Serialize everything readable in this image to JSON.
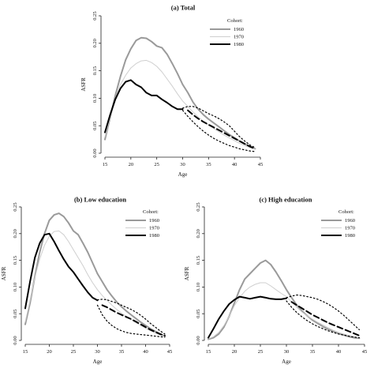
{
  "chart_data": [
    {
      "type": "line",
      "title": "(a) Total",
      "xlabel": "Age",
      "ylabel": "ASFR",
      "xlim": [
        15,
        45
      ],
      "ylim": [
        0,
        0.25
      ],
      "xticks": [
        15,
        20,
        25,
        30,
        35,
        40,
        45
      ],
      "yticks": [
        0.0,
        0.05,
        0.1,
        0.15,
        0.2,
        0.25
      ],
      "legend_title": "Cohort:",
      "legend_position": "top-right",
      "series": [
        {
          "name": "1960",
          "color": "#9a9a9a",
          "width": 2,
          "style": "solid",
          "x": [
            15,
            16,
            17,
            18,
            19,
            20,
            21,
            22,
            23,
            24,
            25,
            26,
            27,
            28,
            29,
            30,
            31,
            32,
            33,
            34,
            35,
            36,
            37,
            38,
            39,
            40,
            41,
            42,
            43,
            44
          ],
          "y": [
            0.025,
            0.065,
            0.105,
            0.14,
            0.17,
            0.19,
            0.205,
            0.21,
            0.209,
            0.203,
            0.195,
            0.192,
            0.18,
            0.163,
            0.145,
            0.125,
            0.11,
            0.093,
            0.08,
            0.07,
            0.062,
            0.055,
            0.048,
            0.041,
            0.034,
            0.028,
            0.022,
            0.017,
            0.012,
            0.008
          ]
        },
        {
          "name": "1970",
          "color": "#cfcfcf",
          "width": 1,
          "style": "solid",
          "x": [
            15,
            16,
            17,
            18,
            19,
            20,
            21,
            22,
            23,
            24,
            25,
            26,
            27,
            28,
            29,
            30,
            31,
            32,
            33,
            34,
            35,
            36,
            37,
            38,
            39,
            40,
            41,
            42,
            43,
            44
          ],
          "y": [
            0.03,
            0.065,
            0.1,
            0.125,
            0.142,
            0.155,
            0.163,
            0.168,
            0.169,
            0.165,
            0.158,
            0.148,
            0.135,
            0.122,
            0.108,
            0.095,
            0.085,
            0.075,
            0.066,
            0.058,
            0.051,
            0.045,
            0.039,
            0.033,
            0.028,
            0.023,
            0.018,
            0.014,
            0.01,
            0.007
          ]
        },
        {
          "name": "1980",
          "color": "#000000",
          "width": 2,
          "style": "solid",
          "x": [
            15,
            16,
            17,
            18,
            19,
            20,
            21,
            22,
            23,
            24,
            25,
            26,
            27,
            28,
            29,
            30
          ],
          "y": [
            0.038,
            0.07,
            0.098,
            0.118,
            0.13,
            0.133,
            0.125,
            0.12,
            0.11,
            0.105,
            0.105,
            0.098,
            0.092,
            0.085,
            0.08,
            0.08
          ]
        },
        {
          "name": "",
          "color": "#000000",
          "width": 2,
          "style": "dashed",
          "x": [
            31,
            32,
            33,
            34,
            35,
            36,
            37,
            38,
            39,
            40,
            41,
            42,
            43,
            44
          ],
          "y": [
            0.078,
            0.07,
            0.063,
            0.057,
            0.052,
            0.047,
            0.042,
            0.037,
            0.032,
            0.027,
            0.022,
            0.017,
            0.012,
            0.008
          ]
        },
        {
          "name": "",
          "color": "#000000",
          "width": 1.2,
          "style": "dotted",
          "x": [
            30,
            31,
            32,
            33,
            34,
            35,
            36,
            37,
            38,
            39,
            40,
            41,
            42,
            43,
            44
          ],
          "y": [
            0.082,
            0.085,
            0.085,
            0.082,
            0.077,
            0.072,
            0.068,
            0.063,
            0.057,
            0.05,
            0.04,
            0.03,
            0.022,
            0.015,
            0.01
          ]
        },
        {
          "name": "",
          "color": "#000000",
          "width": 1.2,
          "style": "dotted",
          "x": [
            30,
            31,
            32,
            33,
            34,
            35,
            36,
            37,
            38,
            39,
            40,
            41,
            42,
            43,
            44
          ],
          "y": [
            0.078,
            0.067,
            0.057,
            0.048,
            0.04,
            0.033,
            0.027,
            0.022,
            0.018,
            0.014,
            0.011,
            0.008,
            0.006,
            0.004,
            0.003
          ]
        }
      ]
    },
    {
      "type": "line",
      "title": "(b) Low education",
      "xlabel": "Age",
      "ylabel": "ASFR",
      "xlim": [
        15,
        45
      ],
      "ylim": [
        0,
        0.25
      ],
      "xticks": [
        15,
        20,
        25,
        30,
        35,
        40,
        45
      ],
      "yticks": [
        0.0,
        0.05,
        0.1,
        0.15,
        0.2,
        0.25
      ],
      "legend_title": "Cohort:",
      "legend_position": "top-right",
      "series": [
        {
          "name": "1960",
          "color": "#9a9a9a",
          "width": 2,
          "style": "solid",
          "x": [
            15,
            16,
            17,
            18,
            19,
            20,
            21,
            22,
            23,
            24,
            25,
            26,
            27,
            28,
            29,
            30,
            31,
            32,
            33,
            34,
            35,
            36,
            37,
            38,
            39,
            40,
            41,
            42,
            43,
            44
          ],
          "y": [
            0.03,
            0.07,
            0.12,
            0.165,
            0.2,
            0.225,
            0.235,
            0.238,
            0.232,
            0.22,
            0.205,
            0.198,
            0.182,
            0.165,
            0.145,
            0.125,
            0.11,
            0.095,
            0.083,
            0.072,
            0.063,
            0.055,
            0.048,
            0.041,
            0.034,
            0.028,
            0.022,
            0.017,
            0.012,
            0.008
          ]
        },
        {
          "name": "1970",
          "color": "#cfcfcf",
          "width": 1,
          "style": "solid",
          "x": [
            15,
            16,
            17,
            18,
            19,
            20,
            21,
            22,
            23,
            24,
            25,
            26,
            27,
            28,
            29,
            30,
            31,
            32,
            33,
            34,
            35,
            36,
            37,
            38,
            39,
            40,
            41,
            42,
            43,
            44
          ],
          "y": [
            0.035,
            0.075,
            0.118,
            0.152,
            0.178,
            0.195,
            0.204,
            0.205,
            0.198,
            0.185,
            0.17,
            0.155,
            0.14,
            0.123,
            0.108,
            0.095,
            0.084,
            0.075,
            0.066,
            0.058,
            0.051,
            0.045,
            0.039,
            0.033,
            0.028,
            0.023,
            0.018,
            0.014,
            0.01,
            0.007
          ]
        },
        {
          "name": "1980",
          "color": "#000000",
          "width": 2,
          "style": "solid",
          "x": [
            15,
            16,
            17,
            18,
            19,
            20,
            21,
            22,
            23,
            24,
            25,
            26,
            27,
            28,
            29,
            30
          ],
          "y": [
            0.06,
            0.11,
            0.155,
            0.182,
            0.198,
            0.2,
            0.185,
            0.168,
            0.152,
            0.138,
            0.128,
            0.115,
            0.102,
            0.09,
            0.08,
            0.075
          ]
        },
        {
          "name": "",
          "color": "#000000",
          "width": 2,
          "style": "dashed",
          "x": [
            31,
            32,
            33,
            34,
            35,
            36,
            37,
            38,
            39,
            40,
            41,
            42,
            43,
            44
          ],
          "y": [
            0.066,
            0.062,
            0.057,
            0.052,
            0.048,
            0.044,
            0.04,
            0.035,
            0.03,
            0.025,
            0.02,
            0.016,
            0.012,
            0.009
          ]
        },
        {
          "name": "",
          "color": "#000000",
          "width": 1.2,
          "style": "dotted",
          "x": [
            30,
            31,
            32,
            33,
            34,
            35,
            36,
            37,
            38,
            39,
            40,
            41,
            42,
            43,
            44
          ],
          "y": [
            0.076,
            0.077,
            0.076,
            0.073,
            0.07,
            0.066,
            0.062,
            0.058,
            0.053,
            0.047,
            0.04,
            0.032,
            0.025,
            0.018,
            0.012
          ]
        },
        {
          "name": "",
          "color": "#000000",
          "width": 1.2,
          "style": "dotted",
          "x": [
            30,
            31,
            32,
            33,
            34,
            35,
            36,
            37,
            38,
            39,
            40,
            41,
            42,
            43,
            44
          ],
          "y": [
            0.066,
            0.048,
            0.036,
            0.028,
            0.022,
            0.018,
            0.015,
            0.013,
            0.012,
            0.011,
            0.01,
            0.009,
            0.008,
            0.007,
            0.006
          ]
        }
      ]
    },
    {
      "type": "line",
      "title": "(c) High education",
      "xlabel": "Age",
      "ylabel": "ASFR",
      "xlim": [
        15,
        45
      ],
      "ylim": [
        0,
        0.25
      ],
      "xticks": [
        15,
        20,
        25,
        30,
        35,
        40,
        45
      ],
      "yticks": [
        0.0,
        0.05,
        0.1,
        0.15,
        0.2,
        0.25
      ],
      "legend_title": "Cohort:",
      "legend_position": "top-right",
      "series": [
        {
          "name": "1960",
          "color": "#9a9a9a",
          "width": 2,
          "style": "solid",
          "x": [
            15,
            16,
            17,
            18,
            19,
            20,
            21,
            22,
            23,
            24,
            25,
            26,
            27,
            28,
            29,
            30,
            31,
            32,
            33,
            34,
            35,
            36,
            37,
            38,
            39,
            40,
            41,
            42,
            43,
            44
          ],
          "y": [
            0.002,
            0.005,
            0.012,
            0.025,
            0.045,
            0.07,
            0.095,
            0.115,
            0.125,
            0.135,
            0.145,
            0.15,
            0.142,
            0.128,
            0.112,
            0.095,
            0.08,
            0.066,
            0.055,
            0.046,
            0.038,
            0.032,
            0.026,
            0.021,
            0.017,
            0.013,
            0.01,
            0.007,
            0.005,
            0.004
          ]
        },
        {
          "name": "1970",
          "color": "#cfcfcf",
          "width": 1,
          "style": "solid",
          "x": [
            15,
            16,
            17,
            18,
            19,
            20,
            21,
            22,
            23,
            24,
            25,
            26,
            27,
            28,
            29,
            30,
            31,
            32,
            33,
            34,
            35,
            36,
            37,
            38,
            39,
            40,
            41,
            42,
            43,
            44
          ],
          "y": [
            0.003,
            0.007,
            0.015,
            0.028,
            0.045,
            0.065,
            0.08,
            0.092,
            0.1,
            0.105,
            0.108,
            0.108,
            0.102,
            0.095,
            0.088,
            0.082,
            0.072,
            0.062,
            0.053,
            0.046,
            0.04,
            0.034,
            0.029,
            0.024,
            0.019,
            0.015,
            0.012,
            0.009,
            0.007,
            0.005
          ]
        },
        {
          "name": "1980",
          "color": "#000000",
          "width": 2,
          "style": "solid",
          "x": [
            15,
            16,
            17,
            18,
            19,
            20,
            21,
            22,
            23,
            24,
            25,
            26,
            27,
            28,
            29,
            30
          ],
          "y": [
            0.005,
            0.022,
            0.04,
            0.055,
            0.068,
            0.076,
            0.082,
            0.08,
            0.078,
            0.08,
            0.082,
            0.08,
            0.078,
            0.077,
            0.077,
            0.079
          ]
        },
        {
          "name": "",
          "color": "#000000",
          "width": 2,
          "style": "dashed",
          "x": [
            31,
            32,
            33,
            34,
            35,
            36,
            37,
            38,
            39,
            40,
            41,
            42,
            43,
            44
          ],
          "y": [
            0.072,
            0.066,
            0.06,
            0.054,
            0.048,
            0.043,
            0.038,
            0.033,
            0.029,
            0.025,
            0.021,
            0.017,
            0.013,
            0.009
          ]
        },
        {
          "name": "",
          "color": "#000000",
          "width": 1.2,
          "style": "dotted",
          "x": [
            30,
            31,
            32,
            33,
            34,
            35,
            36,
            37,
            38,
            39,
            40,
            41,
            42,
            43,
            44
          ],
          "y": [
            0.08,
            0.083,
            0.085,
            0.084,
            0.082,
            0.08,
            0.077,
            0.073,
            0.068,
            0.062,
            0.055,
            0.047,
            0.038,
            0.029,
            0.02
          ]
        },
        {
          "name": "",
          "color": "#000000",
          "width": 1.2,
          "style": "dotted",
          "x": [
            30,
            31,
            32,
            33,
            34,
            35,
            36,
            37,
            38,
            39,
            40,
            41,
            42,
            43,
            44
          ],
          "y": [
            0.074,
            0.062,
            0.052,
            0.044,
            0.037,
            0.031,
            0.026,
            0.022,
            0.018,
            0.015,
            0.012,
            0.01,
            0.008,
            0.006,
            0.005
          ]
        }
      ]
    }
  ]
}
